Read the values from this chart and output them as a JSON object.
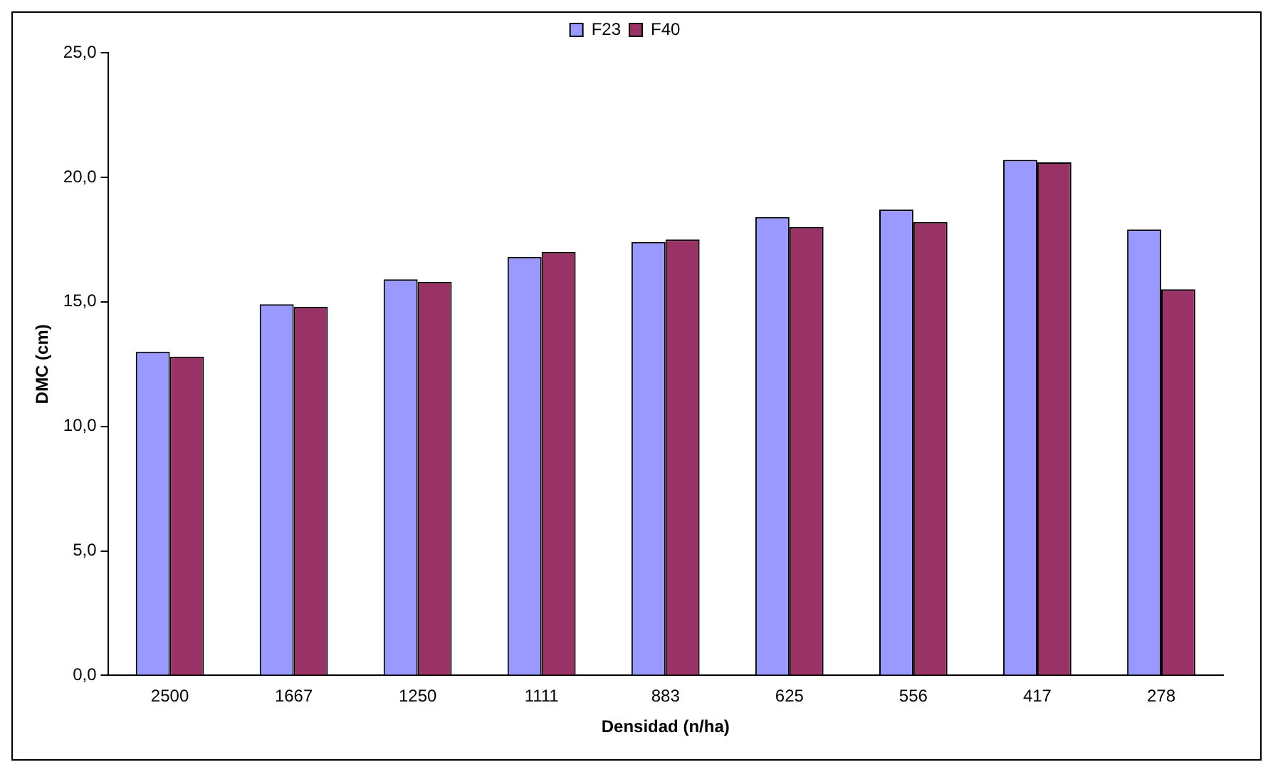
{
  "chart_data": {
    "type": "bar",
    "xlabel": "Densidad (n/ha)",
    "ylabel": "DMC (cm)",
    "categories": [
      "2500",
      "1667",
      "1250",
      "1111",
      "883",
      "625",
      "556",
      "417",
      "278"
    ],
    "series": [
      {
        "name": "F23",
        "color": "#9999ff",
        "values": [
          13.0,
          14.9,
          15.9,
          16.8,
          17.4,
          18.4,
          18.7,
          20.7,
          17.9
        ]
      },
      {
        "name": "F40",
        "color": "#993366",
        "values": [
          12.8,
          14.8,
          15.8,
          17.0,
          17.5,
          18.0,
          18.2,
          20.6,
          15.5
        ]
      }
    ],
    "ylim": [
      0,
      25
    ],
    "yticks": [
      {
        "value": 0,
        "label": "0,0"
      },
      {
        "value": 5,
        "label": "5,0"
      },
      {
        "value": 10,
        "label": "10,0"
      },
      {
        "value": 15,
        "label": "15,0"
      },
      {
        "value": 20,
        "label": "20,0"
      },
      {
        "value": 25,
        "label": "25,0"
      }
    ],
    "grid": false,
    "legend": "top"
  }
}
